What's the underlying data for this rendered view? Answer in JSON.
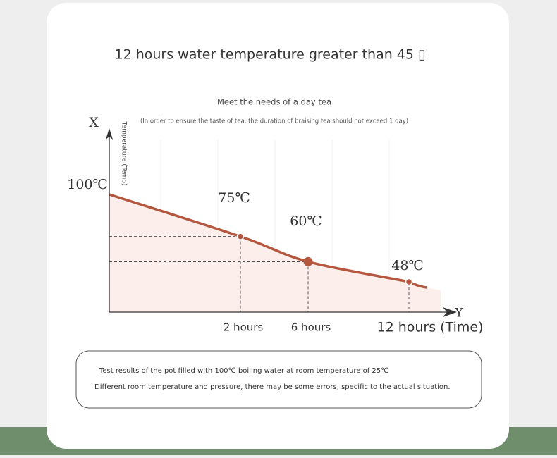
{
  "chart_data": {
    "type": "line",
    "title": "12 hours water temperature greater than 45 ▯",
    "subtitle": "Meet the needs of a day tea",
    "note": "(In order to ensure the taste of tea, the duration of braising tea should not exceed 1 day)",
    "y_axis_letter": "X",
    "x_axis_letter": "Y",
    "y_axis_title": "Temperature (Temp)",
    "categories": [
      null,
      "2 hours",
      "6 hours",
      "12 hours (Time)"
    ],
    "values": [
      100,
      75,
      60,
      48
    ],
    "value_labels": [
      "100℃",
      "75℃",
      "60℃",
      "48℃"
    ],
    "ylim": [
      30,
      100
    ],
    "color": "#b5563f",
    "footnotes": [
      "Test results of the pot filled with 100℃ boiling water at room temperature of 25℃",
      "Different room temperature and pressure, there may be some errors, specific to the actual situation."
    ]
  }
}
